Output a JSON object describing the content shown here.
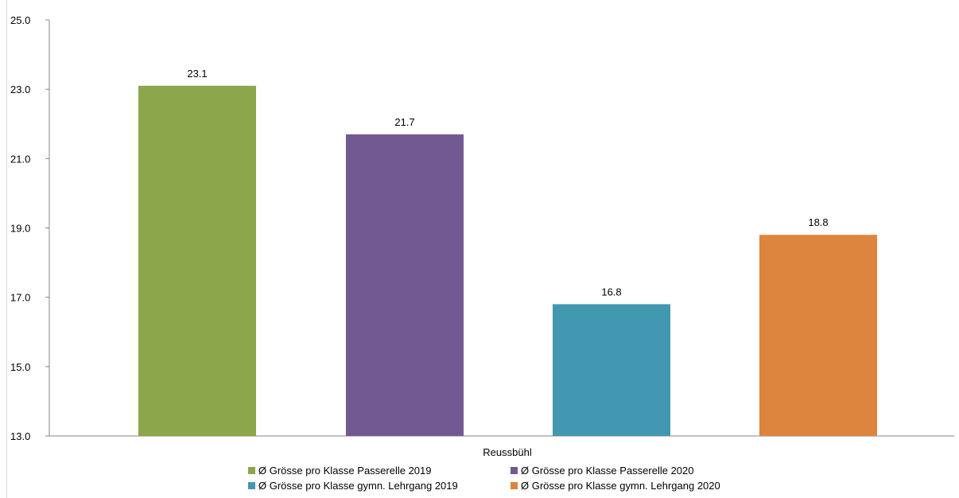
{
  "chart_data": {
    "type": "bar",
    "categories": [
      "Reussbühl"
    ],
    "xlabel": "Reussbühl",
    "ylim": [
      13.0,
      25.0
    ],
    "yticks": [
      "13.0",
      "15.0",
      "17.0",
      "19.0",
      "21.0",
      "23.0",
      "25.0"
    ],
    "grid": false,
    "legend_position": "bottom",
    "series": [
      {
        "name": "Ø Grösse pro Klasse Passerelle 2019",
        "values": [
          23.1
        ],
        "label": "23.1",
        "color": "#8ba64b"
      },
      {
        "name": "Ø Grösse pro Klasse Passerelle 2020",
        "values": [
          21.7
        ],
        "label": "21.7",
        "color": "#715a91"
      },
      {
        "name": "Ø Grösse pro Klasse gymn. Lehrgang 2019",
        "values": [
          16.8
        ],
        "label": "16.8",
        "color": "#4298b0"
      },
      {
        "name": "Ø Grösse pro Klasse gymn. Lehrgang 2020",
        "values": [
          18.8
        ],
        "label": "18.8",
        "color": "#dd843e"
      }
    ]
  }
}
